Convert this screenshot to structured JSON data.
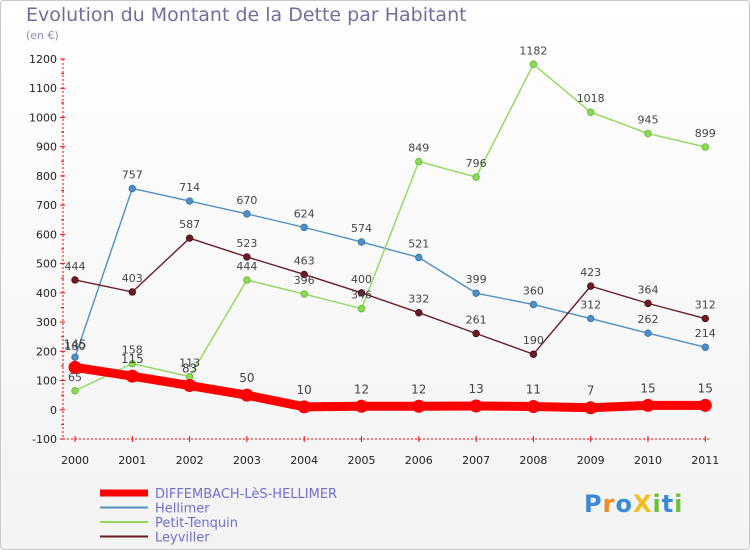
{
  "chart_data": {
    "type": "line",
    "title": "Evolution du Montant de la Dette par Habitant",
    "subtitle": "(en €)",
    "xlabel": "",
    "ylabel": "",
    "categories": [
      "2000",
      "2001",
      "2002",
      "2003",
      "2004",
      "2005",
      "2006",
      "2007",
      "2008",
      "2009",
      "2010",
      "2011"
    ],
    "ylim": [
      -100,
      1200
    ],
    "yticks": [
      -100,
      0,
      100,
      200,
      300,
      400,
      500,
      600,
      700,
      800,
      900,
      1000,
      1100,
      1200
    ],
    "grid": false,
    "legend_position": "bottom-left",
    "series": [
      {
        "name": "DIFFEMBACH-LèS-HELLIMER",
        "color": "#ff0000",
        "values": [
          145,
          115,
          83,
          50,
          10,
          12,
          12,
          13,
          11,
          7,
          15,
          15
        ]
      },
      {
        "name": "Hellimer",
        "color": "#4f8fc6",
        "values": [
          180,
          757,
          714,
          670,
          624,
          574,
          521,
          399,
          360,
          312,
          262,
          214
        ]
      },
      {
        "name": "Petit-Tenquin",
        "color": "#8fd95a",
        "values": [
          65,
          158,
          113,
          444,
          396,
          346,
          849,
          796,
          1182,
          1018,
          945,
          899
        ]
      },
      {
        "name": "Leyviller",
        "color": "#6b1c24",
        "values": [
          444,
          403,
          587,
          523,
          463,
          400,
          332,
          261,
          190,
          423,
          364,
          312
        ]
      }
    ]
  },
  "logo": {
    "text": "ProXiti",
    "letters": [
      {
        "ch": "P",
        "color": "#3a8ad6"
      },
      {
        "ch": "r",
        "color": "#f08a24"
      },
      {
        "ch": "o",
        "color": "#3a8ad6"
      },
      {
        "ch": "X",
        "color": "#f0c020"
      },
      {
        "ch": "i",
        "color": "#6fbf3a"
      },
      {
        "ch": "t",
        "color": "#3a8ad6"
      },
      {
        "ch": "i",
        "color": "#6fbf3a"
      }
    ]
  }
}
